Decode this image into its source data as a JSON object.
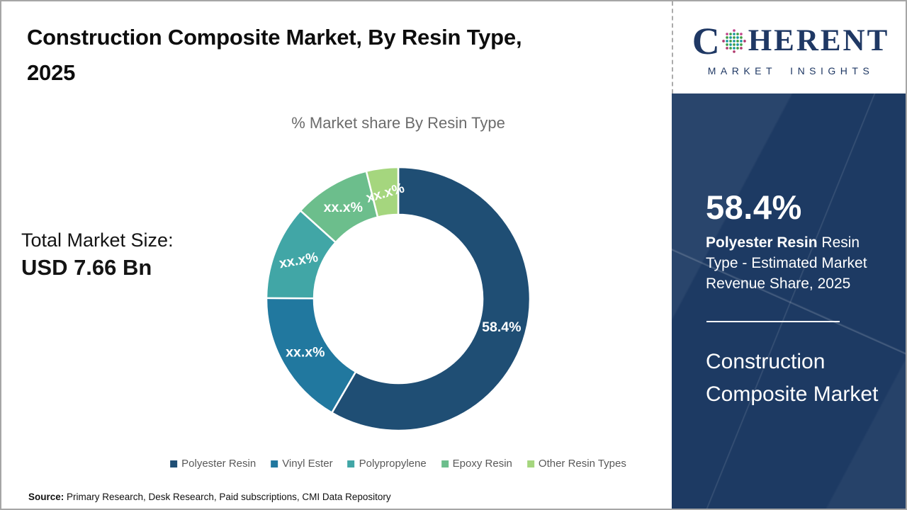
{
  "header": {
    "title_lines": [
      "Construction Composite Market, By Resin Type,",
      "2025"
    ]
  },
  "logo": {
    "first_letter": "C",
    "rest": "HERENT",
    "subtitle": "MARKET INSIGHTS",
    "text_color": "#1F3864"
  },
  "market": {
    "label": "Total Market Size:",
    "value": "USD 7.66 Bn"
  },
  "chart_data": {
    "type": "pie",
    "subtype": "donut",
    "title": "% Market share By Resin Type",
    "categories": [
      "Polyester Resin",
      "Vinyl Ester",
      "Polypropylene",
      "Epoxy Resin",
      "Other Resin Types"
    ],
    "values": [
      58.4,
      16.7,
      11.6,
      9.4,
      3.9
    ],
    "slice_labels": [
      "58.4%",
      "xx.x%",
      "xx.x%",
      "xx.x%",
      "xx.x%"
    ],
    "label_rotations_deg": [
      0,
      0,
      -10,
      0,
      -16
    ],
    "colors": [
      "#1F4E74",
      "#21789F",
      "#41A6A6",
      "#6CBE8C",
      "#A5D67E"
    ],
    "start_angle_deg": 0,
    "inner_radius_ratio": 0.64,
    "legend_position": "bottom",
    "legend_text_color": "#595959"
  },
  "sidebar": {
    "stat_value": "58.4%",
    "stat_bold": "Polyester Resin",
    "stat_rest": " Resin Type - Estimated Market Revenue Share, 2025",
    "market_name": "Construction Composite Market",
    "bg_color": "#1D3A63"
  },
  "source": {
    "prefix": "Source:",
    "text": " Primary Research, Desk Research, Paid subscriptions, CMI Data Repository"
  }
}
